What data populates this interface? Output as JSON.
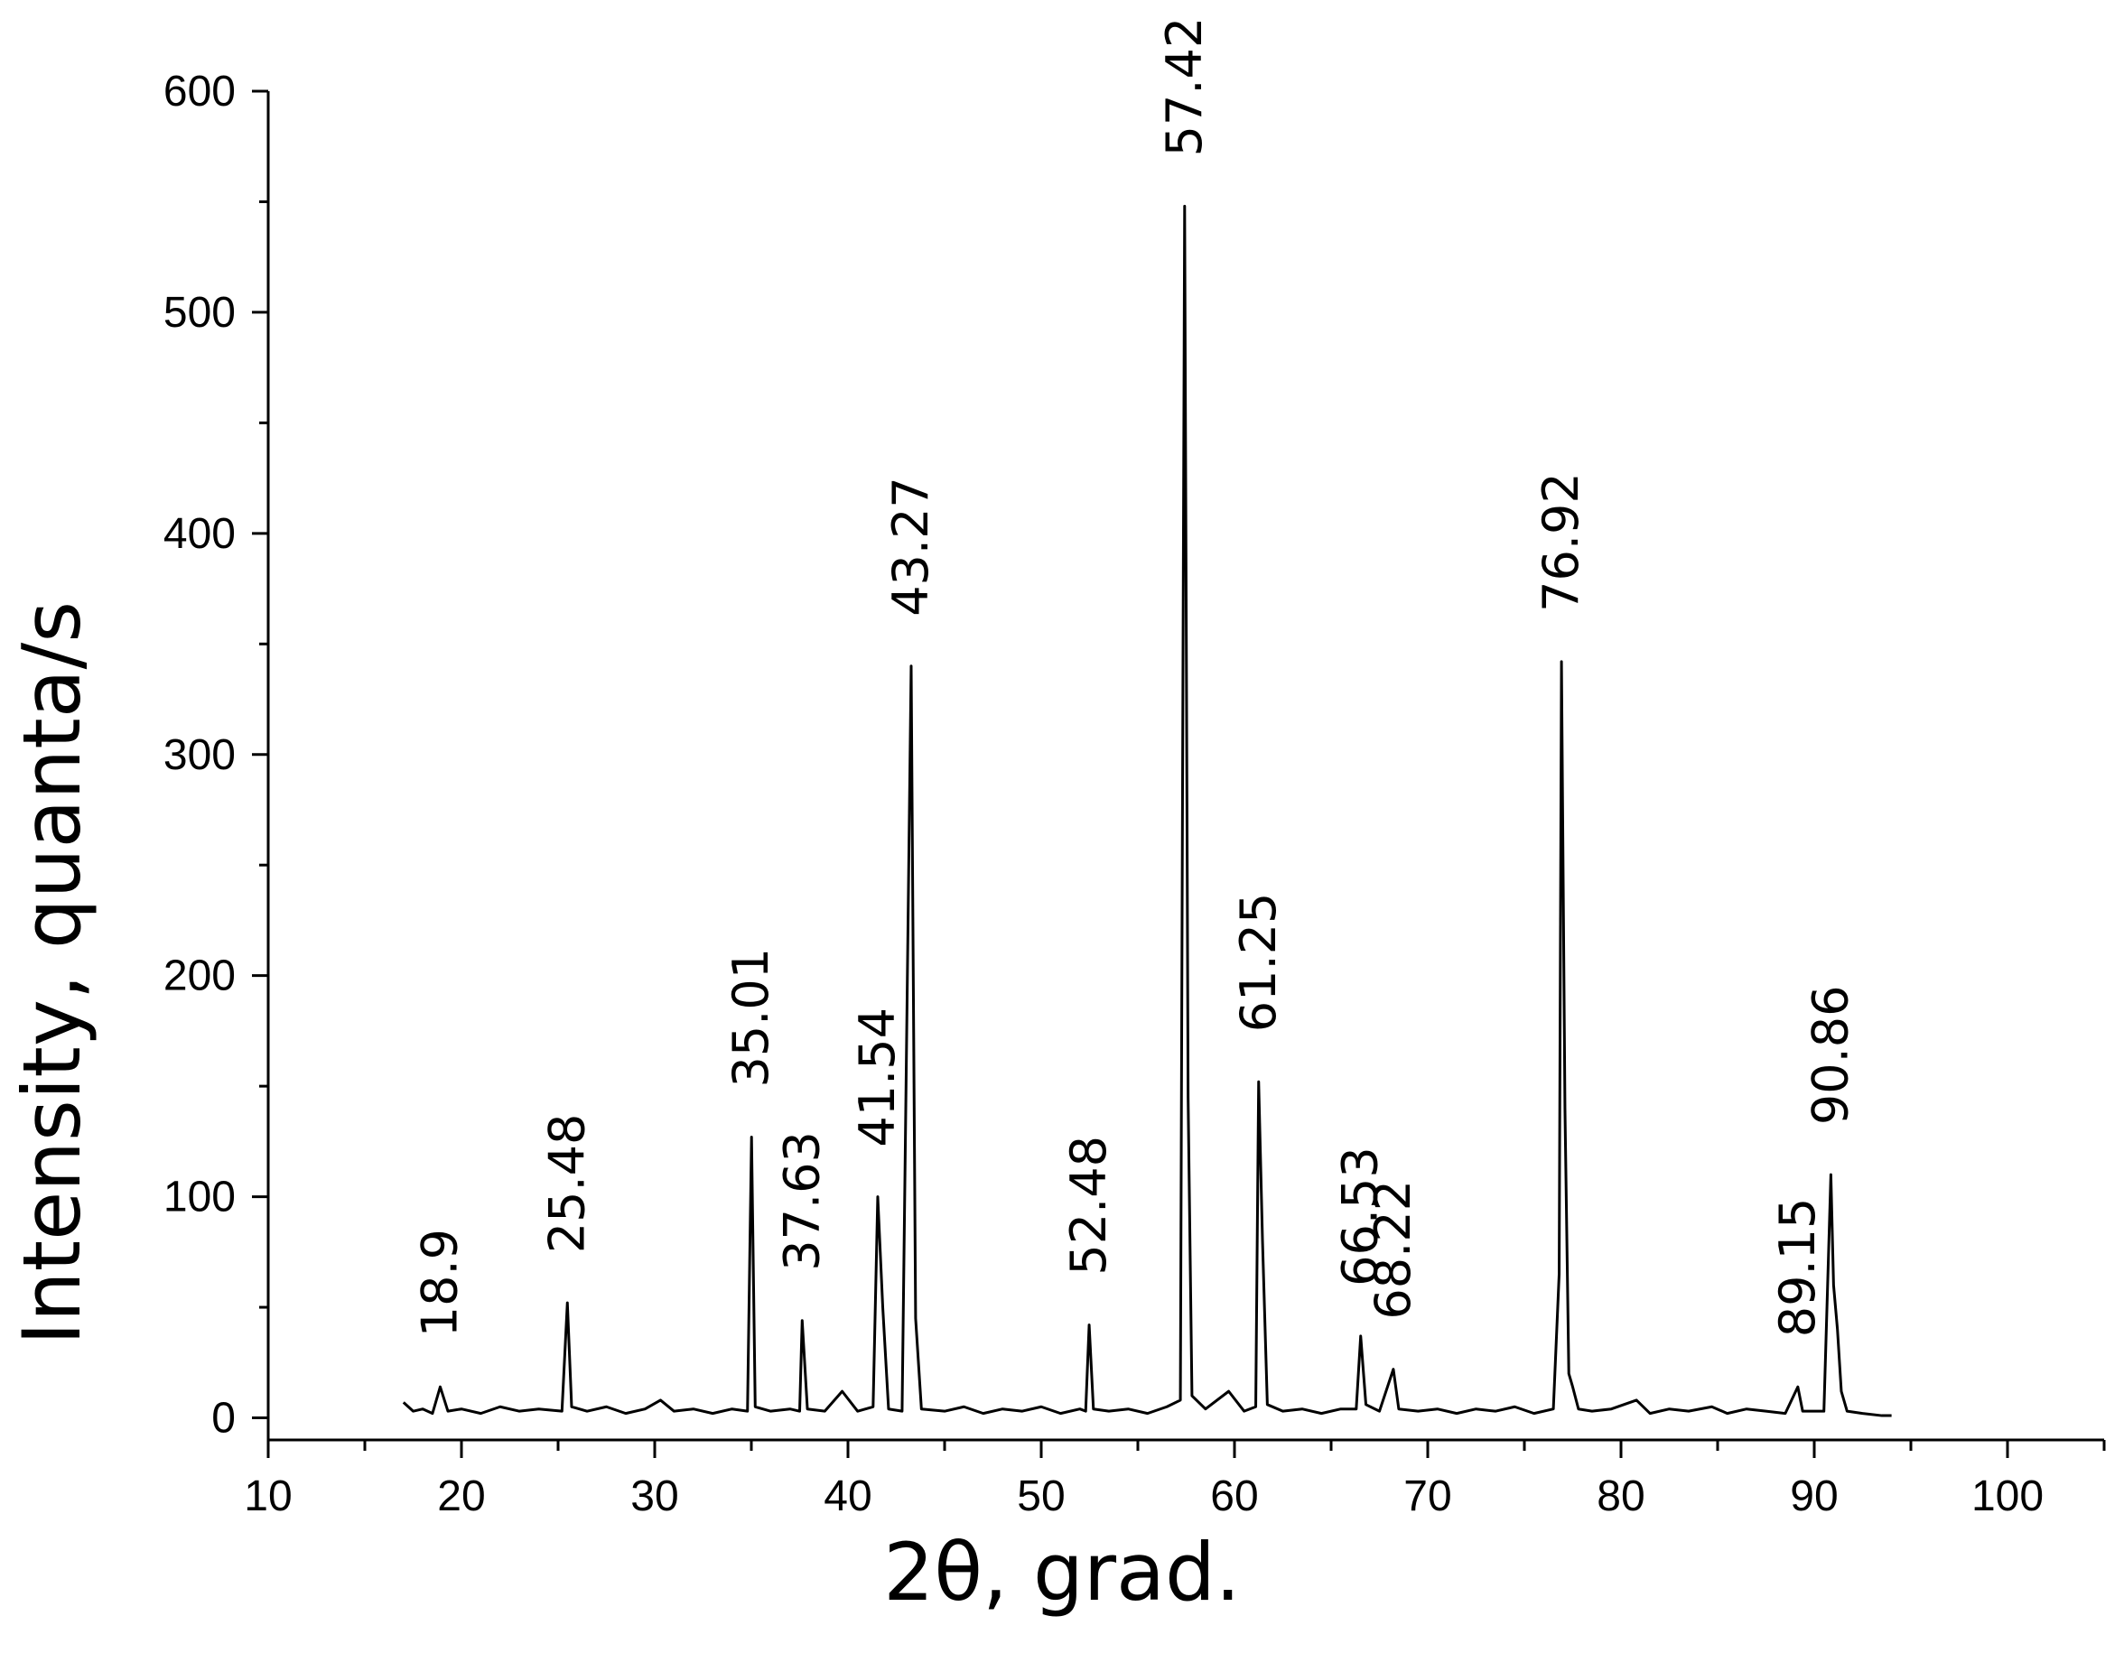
{
  "chart_data": {
    "type": "line",
    "x_label": "2θ, grad.",
    "y_label": "Intensity, quanta/s",
    "xlim": [
      10,
      105
    ],
    "ylim": [
      -10,
      600
    ],
    "xticks": [
      10,
      20,
      30,
      40,
      50,
      60,
      70,
      80,
      90,
      100
    ],
    "yticks": [
      0,
      100,
      200,
      300,
      400,
      500,
      600
    ],
    "xminorticks": [
      15,
      25,
      35,
      45,
      55,
      65,
      75,
      85,
      95,
      105
    ],
    "yminorticks": [
      50,
      150,
      250,
      350,
      450,
      550
    ],
    "color": "#000000",
    "x": [
      17.0,
      17.5,
      18.0,
      18.5,
      18.9,
      19.3,
      20,
      21,
      22,
      23,
      24,
      25.2,
      25.48,
      25.7,
      26.5,
      27.5,
      28.5,
      29.5,
      30.3,
      31,
      32,
      33,
      34,
      34.8,
      35.01,
      35.2,
      36,
      37,
      37.5,
      37.63,
      37.9,
      38.8,
      39.7,
      40.5,
      41.3,
      41.54,
      41.8,
      42.1,
      42.8,
      43.27,
      43.5,
      43.8,
      45,
      46,
      47,
      48,
      49,
      50,
      51,
      52,
      52.3,
      52.48,
      52.7,
      53.5,
      54.5,
      55.5,
      56.5,
      57.2,
      57.42,
      57.6,
      57.8,
      58.5,
      59.7,
      60.5,
      61.1,
      61.25,
      61.45,
      61.7,
      62.5,
      63.5,
      64.5,
      65.5,
      66.3,
      66.53,
      66.8,
      67.5,
      68.22,
      68.5,
      69.5,
      70.5,
      71.5,
      72.5,
      73.5,
      74.5,
      75.5,
      76.5,
      76.8,
      76.92,
      77.1,
      77.3,
      77.5,
      77.8,
      78.5,
      79.5,
      80.8,
      81.5,
      82.5,
      83.5,
      84.7,
      85.5,
      86.5,
      87.5,
      88.5,
      89.15,
      89.4,
      90.5,
      90.86,
      91.0,
      91.2,
      91.4,
      91.7,
      92.5,
      93.5,
      94
    ],
    "values": [
      7,
      3,
      4,
      2,
      14,
      3,
      4,
      2,
      5,
      3,
      4,
      3,
      52,
      5,
      3,
      5,
      2,
      4,
      8,
      3,
      4,
      2,
      4,
      3,
      127,
      5,
      3,
      4,
      3,
      44,
      4,
      3,
      12,
      3,
      5,
      100,
      50,
      4,
      3,
      340,
      45,
      4,
      3,
      5,
      2,
      4,
      3,
      5,
      2,
      4,
      3,
      42,
      4,
      3,
      4,
      2,
      5,
      8,
      548,
      145,
      10,
      4,
      12,
      3,
      5,
      152,
      80,
      6,
      3,
      4,
      2,
      4,
      4,
      37,
      6,
      3,
      22,
      4,
      3,
      4,
      2,
      4,
      3,
      5,
      2,
      4,
      65,
      342,
      140,
      20,
      14,
      4,
      3,
      4,
      8,
      2,
      4,
      3,
      5,
      2,
      4,
      3,
      2,
      14,
      3,
      3,
      110,
      60,
      40,
      12,
      3,
      2,
      1,
      1
    ],
    "peak_labels": [
      18.9,
      25.48,
      35.01,
      37.63,
      41.54,
      43.27,
      52.48,
      57.42,
      61.25,
      66.53,
      68.22,
      76.92,
      89.15,
      90.86
    ]
  }
}
